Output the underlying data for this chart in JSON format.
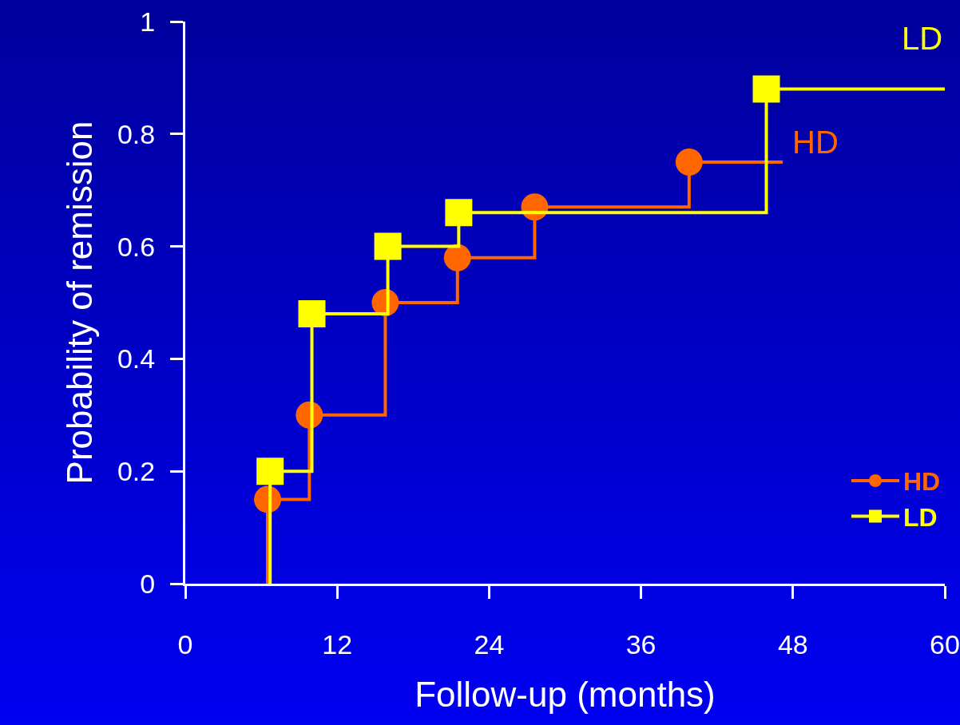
{
  "chart_data": {
    "type": "step",
    "xlabel": "Follow-up (months)",
    "ylabel": "Probability of remission",
    "xlim": [
      0,
      60
    ],
    "xticks": [
      0,
      12,
      24,
      36,
      48,
      60
    ],
    "ylim": [
      0,
      1
    ],
    "yticks": [
      0,
      0.2,
      0.4,
      0.6,
      0.8,
      1
    ],
    "series": [
      {
        "name": "HD",
        "color": "#ff6600",
        "marker": "circle",
        "x": [
          6.5,
          6.5,
          9.8,
          15.8,
          21.5,
          27.6,
          39.8,
          47.2
        ],
        "values": [
          0,
          0.15,
          0.3,
          0.5,
          0.58,
          0.67,
          0.75,
          0.75
        ]
      },
      {
        "name": "LD",
        "color": "#ffff00",
        "marker": "square",
        "x": [
          6.7,
          6.7,
          10,
          16,
          21.6,
          45.9,
          60
        ],
        "values": [
          0,
          0.2,
          0.48,
          0.6,
          0.66,
          0.88,
          0.88
        ]
      }
    ],
    "annotations": [
      "LD",
      "HD"
    ],
    "grid": false,
    "legend": "bottom right"
  }
}
